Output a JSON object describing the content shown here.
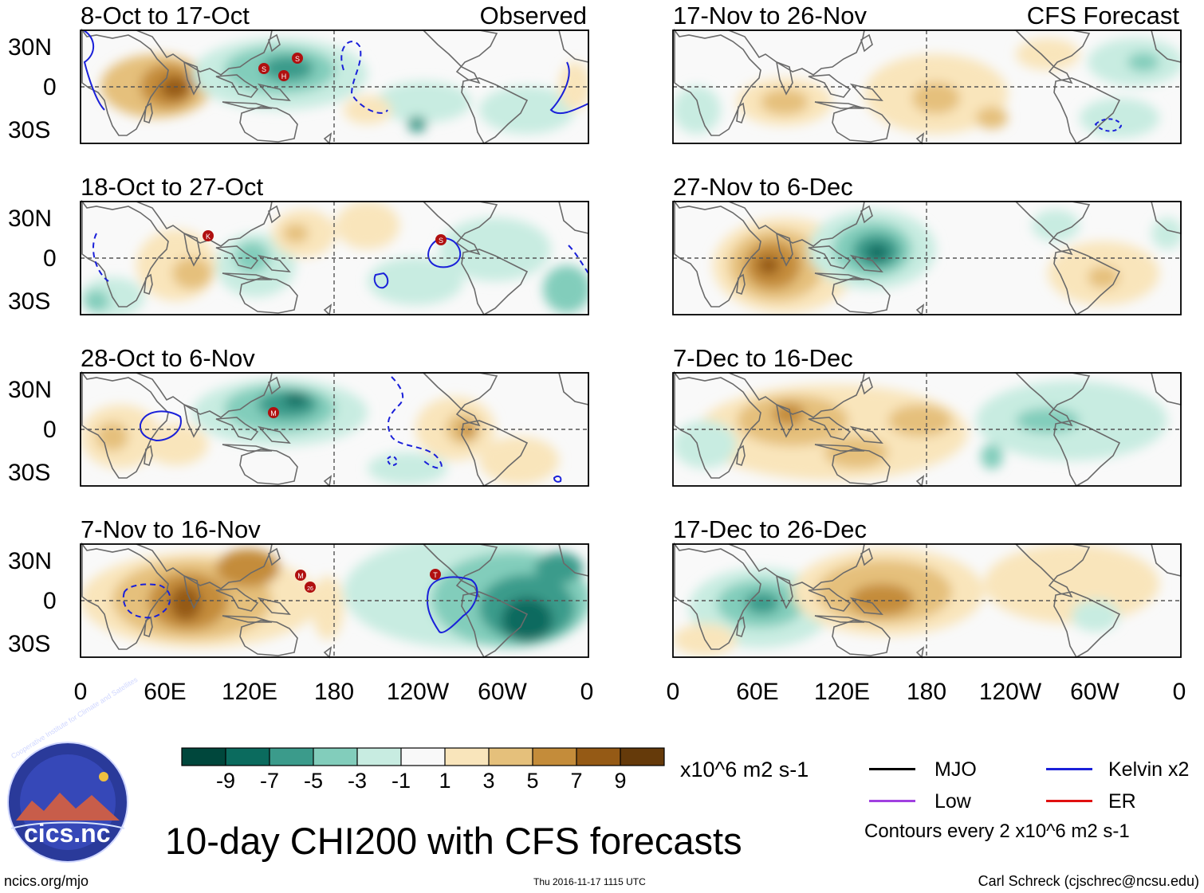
{
  "panels": [
    {
      "title": "8-Oct to 17-Oct",
      "tag": "Observed"
    },
    {
      "title": "18-Oct to 27-Oct",
      "tag": ""
    },
    {
      "title": "28-Oct to 6-Nov",
      "tag": ""
    },
    {
      "title": "7-Nov to 16-Nov",
      "tag": ""
    },
    {
      "title": "17-Nov to 26-Nov",
      "tag": "CFS Forecast"
    },
    {
      "title": "27-Nov to 6-Dec",
      "tag": ""
    },
    {
      "title": "7-Dec to 16-Dec",
      "tag": ""
    },
    {
      "title": "17-Dec to 26-Dec",
      "tag": ""
    }
  ],
  "lat_labels": [
    "30N",
    "0",
    "30S"
  ],
  "lon_labels": [
    "0",
    "60E",
    "120E",
    "180",
    "120W",
    "60W",
    "0"
  ],
  "colorbar": {
    "labels": [
      "-9",
      "-7",
      "-5",
      "-3",
      "-1",
      "1",
      "3",
      "5",
      "7",
      "9"
    ],
    "colors": [
      "#00473c",
      "#0b6b5e",
      "#3b9b8b",
      "#82cdbb",
      "#c8ece1",
      "#f9f9f9",
      "#f9e5bb",
      "#e5c07b",
      "#c48c3a",
      "#955a15",
      "#653a0a"
    ],
    "units": "x10^6 m2 s-1"
  },
  "legend": {
    "items": [
      {
        "label": "MJO",
        "color": "#000000"
      },
      {
        "label": "Kelvin x2",
        "color": "#1a20d9"
      },
      {
        "label": "Low",
        "color": "#a040e0"
      },
      {
        "label": "ER",
        "color": "#e01010"
      }
    ],
    "note": "Contours every 2 x10^6 m2 s-1"
  },
  "main_title": "10-day CHI200 with CFS forecasts",
  "footer": {
    "left": "ncics.org/mjo",
    "center": "Thu 2016-11-17 1115 UTC",
    "right": "Carl Schreck (cjschrec@ncsu.edu)"
  },
  "logo": {
    "text": "cics.nc",
    "ring_text": "Cooperative Institute for Climate and Satellites"
  },
  "storm_markers": [
    {
      "panel": 0,
      "letters": [
        "S",
        "H",
        "S"
      ]
    },
    {
      "panel": 1,
      "letters": [
        "K",
        "S"
      ]
    },
    {
      "panel": 2,
      "letters": [
        "M"
      ]
    },
    {
      "panel": 3,
      "letters": [
        "M",
        "26",
        "T"
      ]
    }
  ]
}
